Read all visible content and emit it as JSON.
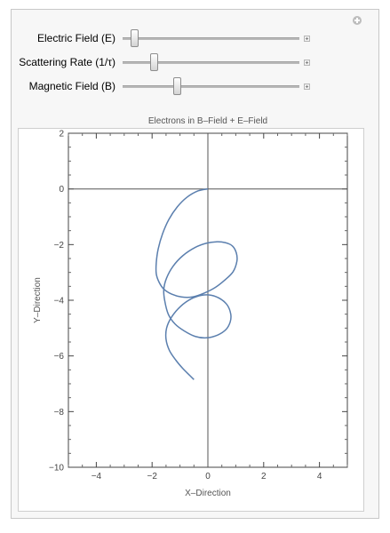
{
  "controls": [
    {
      "label": "Electric Field (E)",
      "fraction": 0.07
    },
    {
      "label": "Scattering Rate (1/τ)",
      "fraction": 0.18
    },
    {
      "label": "Magnetic Field (B)",
      "fraction": 0.31
    }
  ],
  "icons": {
    "panel_toggle": "plus-circle-icon",
    "slider_expand": "plus-square-icon"
  },
  "chart_data": {
    "type": "line",
    "title": "Electrons in B–Field + E–Field",
    "xlabel": "X–Direction",
    "ylabel": "Y–Direction",
    "xlim": [
      -5,
      5
    ],
    "ylim": [
      -10,
      2
    ],
    "xticks": [
      -4,
      -2,
      0,
      2,
      4
    ],
    "yticks": [
      2,
      0,
      -2,
      -4,
      -6,
      -8,
      -10
    ],
    "xtick_labels": [
      "−4",
      "−2",
      "0",
      "2",
      "4"
    ],
    "ytick_labels": [
      "2",
      "0",
      "−2",
      "−4",
      "−6",
      "−8",
      "−10"
    ],
    "series": [
      {
        "color": "#5b7fae",
        "x": [
          0,
          -0.35,
          -0.75,
          -1.1,
          -1.4,
          -1.62,
          -1.78,
          -1.85,
          -1.85,
          -1.75,
          -1.58,
          -1.3,
          -0.95,
          -0.55,
          -0.15,
          0.25,
          0.6,
          0.9,
          1.04,
          1.02,
          0.88,
          0.62,
          0.3,
          -0.05,
          -0.45,
          -0.9,
          -1.25,
          -1.48,
          -1.58,
          -1.55,
          -1.42,
          -1.18,
          -0.85,
          -0.45,
          -0.05,
          0.35,
          0.65,
          0.8,
          0.82,
          0.7,
          0.45,
          0.12,
          -0.22,
          -0.6,
          -0.98,
          -1.3,
          -1.48,
          -1.5,
          -1.38,
          -1.15,
          -0.9,
          -0.65,
          -0.5
        ],
        "y": [
          0,
          -0.07,
          -0.3,
          -0.65,
          -1.1,
          -1.6,
          -2.15,
          -2.65,
          -3.05,
          -3.35,
          -3.6,
          -3.78,
          -3.88,
          -3.88,
          -3.75,
          -3.55,
          -3.28,
          -2.98,
          -2.6,
          -2.3,
          -2.05,
          -1.93,
          -1.9,
          -1.95,
          -2.1,
          -2.4,
          -2.78,
          -3.2,
          -3.6,
          -4.0,
          -4.5,
          -4.85,
          -5.1,
          -5.3,
          -5.35,
          -5.25,
          -5.05,
          -4.78,
          -4.5,
          -4.18,
          -3.95,
          -3.82,
          -3.82,
          -3.95,
          -4.22,
          -4.6,
          -5.0,
          -5.4,
          -5.8,
          -6.15,
          -6.45,
          -6.7,
          -6.85
        ]
      }
    ]
  }
}
